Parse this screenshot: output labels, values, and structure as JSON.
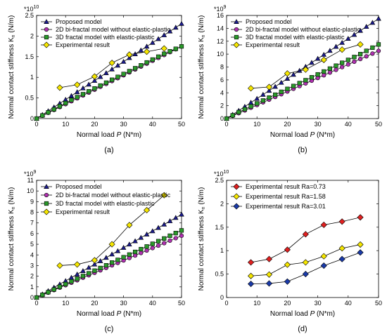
{
  "chart_data": [
    {
      "type": "line",
      "panel_label": "(a)",
      "multiplier": "*10",
      "multiplier_exp": "10",
      "xlabel": "Normal load ",
      "xlabel_var": "P",
      "xlabel_unit": " (N*m)",
      "ylabel": "Normal contact stiffness K",
      "ylabel_sub": "n",
      "ylabel_unit": " (N/m)",
      "xlim": [
        0,
        50
      ],
      "ylim": [
        0,
        2.5
      ],
      "xticks": [
        0,
        10,
        20,
        30,
        40,
        50
      ],
      "yticks": [
        0,
        0.5,
        1,
        1.5,
        2,
        2.5
      ],
      "legend_position": "top-left",
      "series": [
        {
          "name": "Proposed model",
          "marker": "triangle",
          "color": "#1a1a8c",
          "x": [
            0,
            2,
            4,
            6,
            8,
            10,
            12,
            14,
            16,
            18,
            20,
            22,
            24,
            26,
            28,
            30,
            32,
            34,
            36,
            38,
            40,
            42,
            44,
            46,
            48,
            50
          ],
          "y": [
            0,
            0.092,
            0.184,
            0.276,
            0.368,
            0.46,
            0.552,
            0.644,
            0.736,
            0.828,
            0.92,
            1.012,
            1.104,
            1.196,
            1.288,
            1.38,
            1.472,
            1.564,
            1.656,
            1.748,
            1.84,
            1.932,
            2.024,
            2.116,
            2.208,
            2.3
          ]
        },
        {
          "name": "2D bi-fractal model without elastic-plastic",
          "marker": "circle",
          "color": "#b030b0",
          "x": [
            0,
            2,
            4,
            6,
            8,
            10,
            12,
            14,
            16,
            18,
            20,
            22,
            24,
            26,
            28,
            30,
            32,
            34,
            36,
            38,
            40,
            42,
            44,
            46,
            48,
            50
          ],
          "y": [
            0,
            0.07,
            0.14,
            0.21,
            0.28,
            0.35,
            0.42,
            0.49,
            0.56,
            0.63,
            0.7,
            0.77,
            0.84,
            0.91,
            0.98,
            1.05,
            1.12,
            1.19,
            1.26,
            1.33,
            1.4,
            1.47,
            1.54,
            1.61,
            1.68,
            1.75
          ]
        },
        {
          "name": "3D fractal model with elastic-plastic",
          "marker": "square",
          "color": "#2a9a2a",
          "x": [
            0,
            2,
            4,
            6,
            8,
            10,
            12,
            14,
            16,
            18,
            20,
            22,
            24,
            26,
            28,
            30,
            32,
            34,
            36,
            38,
            40,
            42,
            44,
            46,
            48,
            50
          ],
          "y": [
            0,
            0.075,
            0.15,
            0.225,
            0.3,
            0.375,
            0.45,
            0.52,
            0.59,
            0.66,
            0.73,
            0.8,
            0.87,
            0.94,
            1.01,
            1.08,
            1.15,
            1.22,
            1.29,
            1.36,
            1.43,
            1.5,
            1.57,
            1.63,
            1.69,
            1.75
          ]
        },
        {
          "name": "Experimental result",
          "marker": "diamond",
          "color": "#f5e600",
          "x": [
            8,
            14,
            20,
            26,
            32,
            38,
            44
          ],
          "y": [
            0.75,
            0.82,
            1.02,
            1.35,
            1.55,
            1.62,
            1.7
          ]
        }
      ]
    },
    {
      "type": "line",
      "panel_label": "(b)",
      "multiplier": "*10",
      "multiplier_exp": "9",
      "xlabel": "Normal load ",
      "xlabel_var": "P",
      "xlabel_unit": " (N*m)",
      "ylabel": "Normal contact stiffness K",
      "ylabel_sub": "n",
      "ylabel_unit": " (N/m)",
      "xlim": [
        0,
        50
      ],
      "ylim": [
        0,
        16
      ],
      "xticks": [
        0,
        10,
        20,
        30,
        40,
        50
      ],
      "yticks": [
        0,
        2,
        4,
        6,
        8,
        10,
        12,
        14,
        16
      ],
      "legend_position": "top-left",
      "series": [
        {
          "name": "Proposed model",
          "marker": "triangle",
          "color": "#1a1a8c",
          "x": [
            0,
            2,
            4,
            6,
            8,
            10,
            12,
            14,
            16,
            18,
            20,
            22,
            24,
            26,
            28,
            30,
            32,
            34,
            36,
            38,
            40,
            42,
            44,
            46,
            48,
            50
          ],
          "y": [
            0,
            0.62,
            1.24,
            1.86,
            2.48,
            3.1,
            3.72,
            4.34,
            4.96,
            5.58,
            6.2,
            6.82,
            7.44,
            8.06,
            8.68,
            9.3,
            9.92,
            10.54,
            11.16,
            11.78,
            12.4,
            13.02,
            13.64,
            14.26,
            14.88,
            15.5
          ]
        },
        {
          "name": "2D bi-fractal model without elastic-plastic",
          "marker": "circle",
          "color": "#b030b0",
          "x": [
            0,
            2,
            4,
            6,
            8,
            10,
            12,
            14,
            16,
            18,
            20,
            22,
            24,
            26,
            28,
            30,
            32,
            34,
            36,
            38,
            40,
            42,
            44,
            46,
            48,
            50
          ],
          "y": [
            0,
            0.42,
            0.84,
            1.26,
            1.68,
            2.1,
            2.52,
            2.94,
            3.36,
            3.78,
            4.2,
            4.62,
            5.04,
            5.46,
            5.88,
            6.3,
            6.72,
            7.14,
            7.56,
            7.98,
            8.4,
            8.82,
            9.24,
            9.66,
            10.08,
            10.5
          ]
        },
        {
          "name": "3D fractal model with elastic-plastic",
          "marker": "square",
          "color": "#2a9a2a",
          "x": [
            0,
            2,
            4,
            6,
            8,
            10,
            12,
            14,
            16,
            18,
            20,
            22,
            24,
            26,
            28,
            30,
            32,
            34,
            36,
            38,
            40,
            42,
            44,
            46,
            48,
            50
          ],
          "y": [
            0,
            0.5,
            1.0,
            1.45,
            1.9,
            2.35,
            2.8,
            3.25,
            3.7,
            4.15,
            4.6,
            5.05,
            5.5,
            5.95,
            6.4,
            6.85,
            7.3,
            7.75,
            8.2,
            8.65,
            9.1,
            9.55,
            10.0,
            10.5,
            11.0,
            11.5
          ]
        },
        {
          "name": "Experimental result",
          "marker": "diamond",
          "color": "#f5e600",
          "x": [
            8,
            14,
            20,
            26,
            32,
            38,
            44
          ],
          "y": [
            4.7,
            4.9,
            7.0,
            7.6,
            9.1,
            10.7,
            11.5
          ]
        }
      ]
    },
    {
      "type": "line",
      "panel_label": "(c)",
      "multiplier": "*10",
      "multiplier_exp": "9",
      "xlabel": "Normal load ",
      "xlabel_var": "P",
      "xlabel_unit": " (N*m)",
      "ylabel": "Normal contact stiffness K",
      "ylabel_sub": "n",
      "ylabel_unit": " (N/m)",
      "xlim": [
        0,
        50
      ],
      "ylim": [
        0,
        11
      ],
      "xticks": [
        0,
        10,
        20,
        30,
        40,
        50
      ],
      "yticks": [
        0,
        1,
        2,
        3,
        4,
        5,
        6,
        7,
        8,
        9,
        10,
        11
      ],
      "legend_position": "top-left",
      "series": [
        {
          "name": "Proposed model",
          "marker": "triangle",
          "color": "#1a1a8c",
          "x": [
            0,
            2,
            4,
            6,
            8,
            10,
            12,
            14,
            16,
            18,
            20,
            22,
            24,
            26,
            28,
            30,
            32,
            34,
            36,
            38,
            40,
            42,
            44,
            46,
            48,
            50
          ],
          "y": [
            0,
            0.31,
            0.62,
            0.94,
            1.25,
            1.56,
            1.87,
            2.18,
            2.5,
            2.81,
            3.12,
            3.43,
            3.74,
            4.06,
            4.37,
            4.68,
            4.99,
            5.3,
            5.62,
            5.93,
            6.24,
            6.55,
            6.86,
            7.18,
            7.49,
            7.8
          ]
        },
        {
          "name": "2D bi-fractal model without elastic-plastic",
          "marker": "circle",
          "color": "#b030b0",
          "x": [
            0,
            2,
            4,
            6,
            8,
            10,
            12,
            14,
            16,
            18,
            20,
            22,
            24,
            26,
            28,
            30,
            32,
            34,
            36,
            38,
            40,
            42,
            44,
            46,
            48,
            50
          ],
          "y": [
            0,
            0.23,
            0.46,
            0.7,
            0.93,
            1.16,
            1.39,
            1.62,
            1.86,
            2.09,
            2.32,
            2.55,
            2.78,
            3.02,
            3.25,
            3.48,
            3.71,
            3.94,
            4.18,
            4.41,
            4.64,
            4.87,
            5.1,
            5.34,
            5.57,
            5.8
          ]
        },
        {
          "name": "3D fractal model with elastic-plastic",
          "marker": "square",
          "color": "#2a9a2a",
          "x": [
            0,
            2,
            4,
            6,
            8,
            10,
            12,
            14,
            16,
            18,
            20,
            22,
            24,
            26,
            28,
            30,
            32,
            34,
            36,
            38,
            40,
            42,
            44,
            46,
            48,
            50
          ],
          "y": [
            0,
            0.25,
            0.5,
            0.76,
            1.01,
            1.26,
            1.51,
            1.76,
            2.02,
            2.27,
            2.52,
            2.77,
            3.02,
            3.28,
            3.53,
            3.78,
            4.03,
            4.28,
            4.54,
            4.79,
            5.04,
            5.29,
            5.54,
            5.8,
            6.05,
            6.3
          ]
        },
        {
          "name": "Experimental result",
          "marker": "diamond",
          "color": "#f5e600",
          "x": [
            8,
            14,
            20,
            26,
            32,
            38,
            44
          ],
          "y": [
            3.0,
            3.1,
            3.5,
            5.0,
            6.8,
            8.2,
            9.6
          ]
        }
      ]
    },
    {
      "type": "line",
      "panel_label": "(d)",
      "multiplier": "*10",
      "multiplier_exp": "10",
      "xlabel": "Normal load ",
      "xlabel_var": "P",
      "xlabel_unit": " (N*m)",
      "ylabel": "Normal contact stiffness K",
      "ylabel_sub": "n",
      "ylabel_unit": " (N/m)",
      "xlim": [
        0,
        50
      ],
      "ylim": [
        0,
        2.5
      ],
      "xticks": [
        0,
        10,
        20,
        30,
        40,
        50
      ],
      "yticks": [
        0,
        0.5,
        1,
        1.5,
        2,
        2.5
      ],
      "legend_position": "top-left",
      "series": [
        {
          "name": "Experimental result Ra=0.73",
          "marker": "diamond",
          "color": "#e02020",
          "x": [
            8,
            14,
            20,
            26,
            32,
            38,
            44
          ],
          "y": [
            0.75,
            0.82,
            1.02,
            1.35,
            1.55,
            1.62,
            1.71
          ]
        },
        {
          "name": "Experimental result Ra=1.58",
          "marker": "diamond",
          "color": "#f5e600",
          "x": [
            8,
            14,
            20,
            26,
            32,
            38,
            44
          ],
          "y": [
            0.46,
            0.49,
            0.7,
            0.75,
            0.88,
            1.05,
            1.13
          ]
        },
        {
          "name": "Experimental result Ra=3.01",
          "marker": "diamond",
          "color": "#1a3aa8",
          "x": [
            8,
            14,
            20,
            26,
            32,
            38,
            44
          ],
          "y": [
            0.29,
            0.3,
            0.34,
            0.5,
            0.68,
            0.82,
            0.96
          ]
        }
      ]
    }
  ]
}
